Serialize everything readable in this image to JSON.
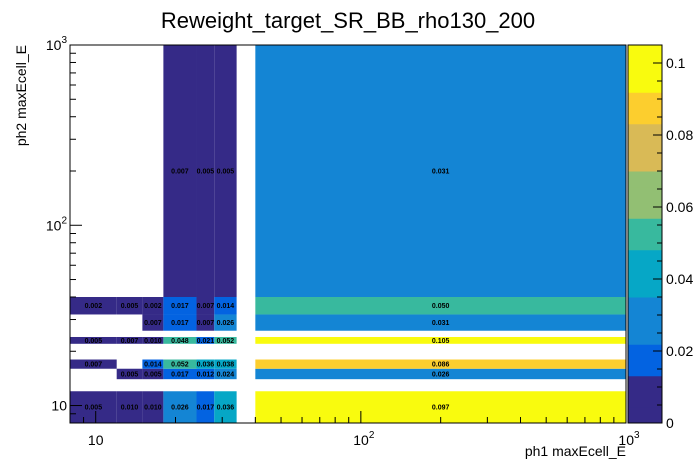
{
  "chart_data": {
    "type": "heatmap",
    "title": "Reweight_target_SR_BB_rho130_200",
    "xlabel": "ph1 maxEcell_E",
    "ylabel": "ph2 maxEcell_E",
    "xscale": "log",
    "yscale": "log",
    "xlim": [
      8,
      1000
    ],
    "ylim": [
      8,
      1000
    ],
    "x_ticks": [
      {
        "value": 10,
        "label": "10",
        "sup": ""
      },
      {
        "value": 100,
        "label": "10",
        "sup": "2"
      },
      {
        "value": 1000,
        "label": "10",
        "sup": "3"
      }
    ],
    "y_ticks": [
      {
        "value": 10,
        "label": "10",
        "sup": ""
      },
      {
        "value": 100,
        "label": "10",
        "sup": "2"
      },
      {
        "value": 1000,
        "label": "10",
        "sup": "3"
      }
    ],
    "x_edges": [
      8,
      12,
      15,
      18,
      24,
      28,
      34,
      40,
      1000
    ],
    "y_edges": [
      8,
      12,
      14,
      16,
      18,
      22,
      24,
      26,
      32,
      40,
      1000
    ],
    "values": [
      [
        0.005,
        0.01,
        0.01,
        0.026,
        0.017,
        0.036,
        0.097
      ],
      [
        null,
        0.005,
        0.005,
        0.017,
        0.012,
        0.024,
        0.026
      ],
      [
        0.007,
        null,
        0.014,
        0.052,
        0.036,
        0.038,
        0.086
      ],
      [
        0.005,
        0.007,
        0.01,
        0.048,
        0.021,
        0.052,
        0.105
      ],
      [
        null,
        null,
        0.007,
        0.017,
        0.007,
        0.026,
        0.031
      ],
      [
        0.002,
        0.005,
        0.002,
        0.017,
        0.007,
        0.014,
        0.05
      ],
      [
        null,
        null,
        null,
        0.007,
        0.005,
        0.005,
        0.031
      ]
    ],
    "row_bins": [
      0,
      2,
      3,
      5,
      7,
      8,
      9
    ],
    "col_bins": [
      0,
      1,
      2,
      3,
      4,
      5,
      7
    ],
    "labels": [
      [
        "0.005",
        "0.010",
        "0.010",
        "0.026",
        "0.017",
        "0.036",
        "0.097"
      ],
      [
        "",
        "0.005",
        "0.005",
        "0.017",
        "0.012",
        "0.024",
        "0.026"
      ],
      [
        "0.007",
        "",
        "0.014",
        "0.052",
        "0.036",
        "0.038",
        "0.086"
      ],
      [
        "0.005",
        "0.007",
        "0.010",
        "0.048",
        "0.021",
        "0.052",
        "0.105"
      ],
      [
        "",
        "",
        "0.007",
        "0.017",
        "0.007",
        "0.026",
        "0.031"
      ],
      [
        "0.002",
        "0.005",
        "0.002",
        "0.017",
        "0.007",
        "0.014",
        "0.050"
      ],
      [
        "",
        "",
        "",
        "0.007",
        "0.005",
        "0.005",
        "0.031"
      ]
    ],
    "colorbar": {
      "min": 0,
      "max": 0.105,
      "ticks": [
        {
          "value": 0,
          "label": "0"
        },
        {
          "value": 0.02,
          "label": "0.02"
        },
        {
          "value": 0.04,
          "label": "0.04"
        },
        {
          "value": 0.06,
          "label": "0.06"
        },
        {
          "value": 0.08,
          "label": "0.08"
        },
        {
          "value": 0.1,
          "label": "0.1"
        }
      ]
    },
    "palette": [
      "#352a87",
      "#0363e1",
      "#1485d4",
      "#06a7c6",
      "#38b99e",
      "#92bf73",
      "#d9ba56",
      "#fcce2e",
      "#f9fb0e"
    ]
  }
}
